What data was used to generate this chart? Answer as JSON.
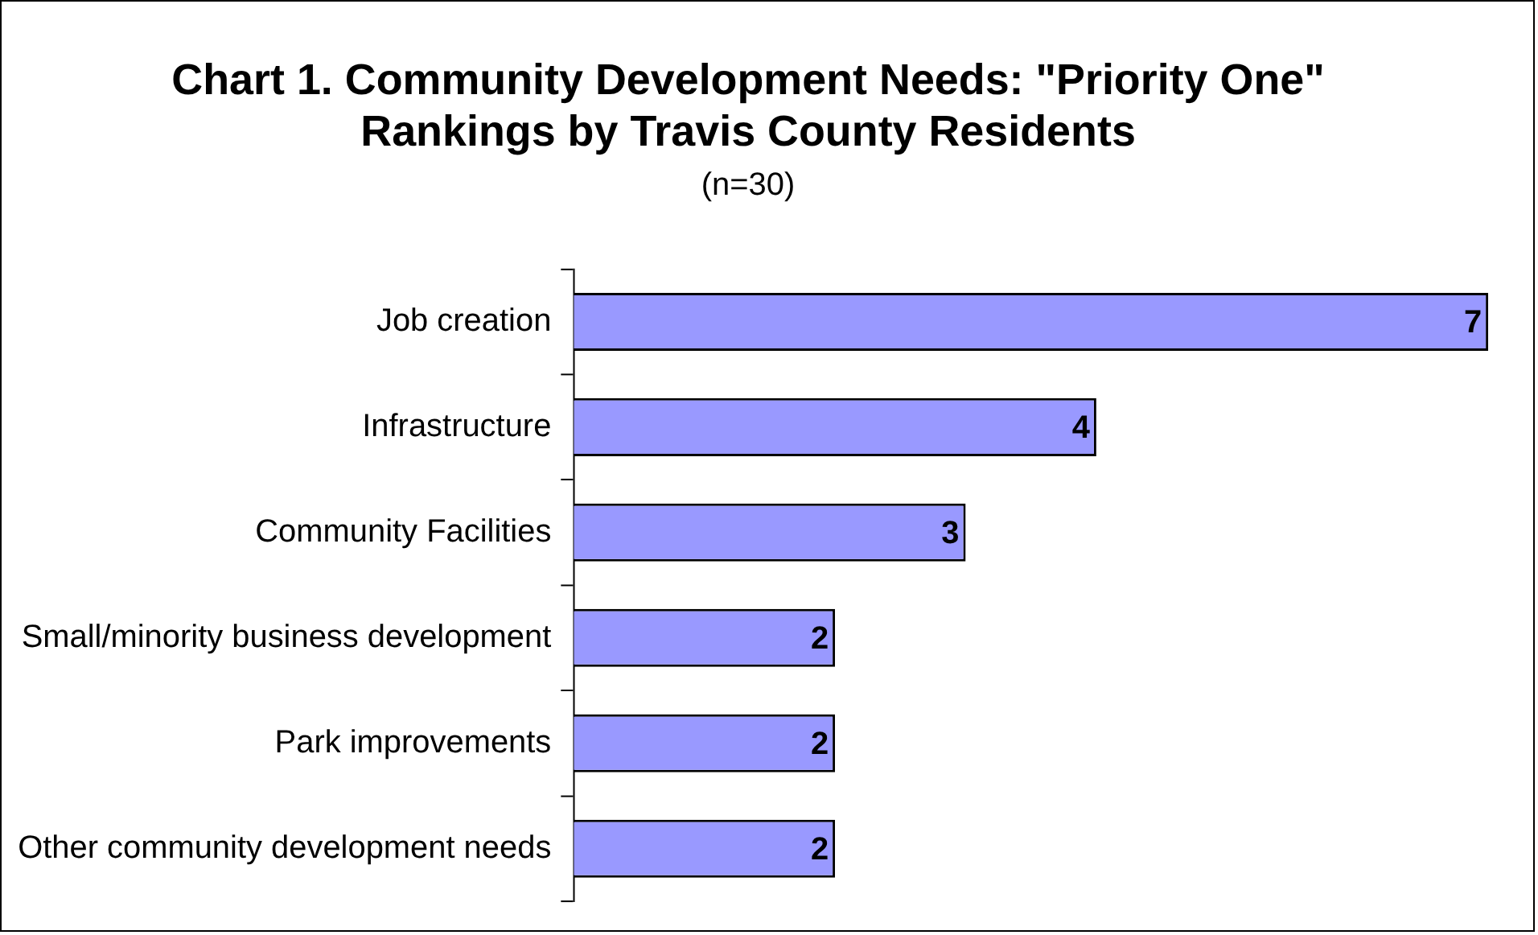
{
  "chart_data": {
    "type": "bar",
    "orientation": "horizontal",
    "title": "Chart 1. Community Development Needs: \"Priority One\" Rankings by Travis County Residents",
    "subtitle": "(n=30)",
    "categories": [
      "Job creation",
      "Infrastructure",
      "Community Facilities",
      "Small/minority business development",
      "Park improvements",
      "Other community development needs"
    ],
    "values": [
      7,
      4,
      3,
      2,
      2,
      2
    ],
    "color": "#9999ff",
    "xlim": [
      0,
      7
    ],
    "tick_labels": "y",
    "grid": false,
    "legend": false,
    "data_labels": true
  }
}
